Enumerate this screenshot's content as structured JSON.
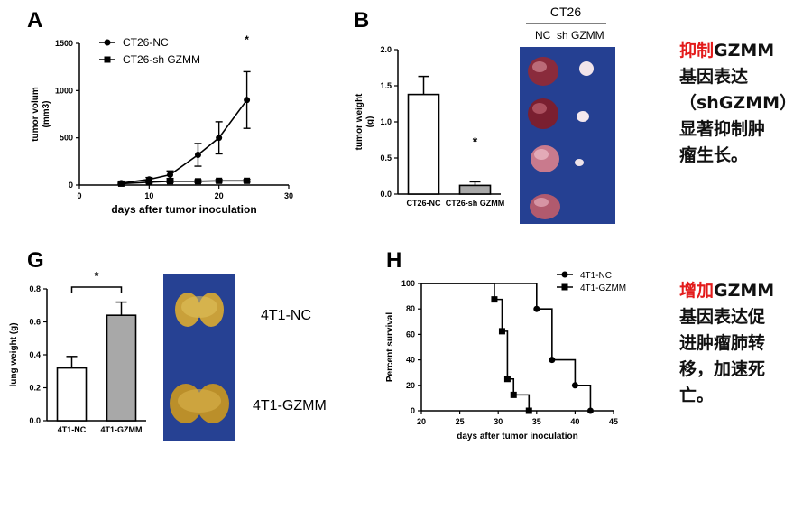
{
  "panels": {
    "A": "A",
    "B": "B",
    "G": "G",
    "H": "H"
  },
  "photo_labels": {
    "ct26_title": "CT26",
    "ct26_nc": "NC",
    "ct26_sh": "sh GZMM",
    "lung_nc": "4T1-NC",
    "lung_gzmm": "4T1-GZMM"
  },
  "notes": [
    {
      "highlight": "抑制",
      "lines": [
        "GZMM",
        "基因表达",
        "（shGZMM）",
        "显著抑制肿",
        "瘤生长。"
      ]
    },
    {
      "highlight": "增加",
      "lines": [
        "GZMM",
        "基因表达促",
        "进肿瘤肺转",
        "移，加速死",
        "亡。"
      ]
    }
  ],
  "colors": {
    "line": "#000000",
    "gray_bar": "#a8a8a8",
    "highlight_red": "#e31b1b",
    "photo_bg": "#2b4aa0"
  },
  "chart_data": [
    {
      "type": "line",
      "panel": "A",
      "xlabel": "days after tumor inoculation",
      "ylabel": "tumor volum (mm3)",
      "xlim": [
        0,
        30
      ],
      "ylim": [
        0,
        1500
      ],
      "xticks": [
        "0",
        "10",
        "20",
        "30"
      ],
      "yticks": [
        "0",
        "500",
        "1000",
        "1500"
      ],
      "legend_position": "top-left",
      "annotation": "*",
      "series": [
        {
          "name": "CT26-NC",
          "marker": "circle",
          "x": [
            6,
            10,
            13,
            17,
            20,
            24
          ],
          "y": [
            20,
            60,
            110,
            320,
            500,
            900
          ],
          "err": [
            10,
            20,
            40,
            120,
            170,
            300
          ]
        },
        {
          "name": "CT26-sh GZMM",
          "marker": "square",
          "x": [
            6,
            10,
            13,
            17,
            20,
            24
          ],
          "y": [
            15,
            30,
            40,
            40,
            45,
            45
          ],
          "err": [
            5,
            10,
            15,
            15,
            15,
            15
          ]
        }
      ]
    },
    {
      "type": "bar",
      "panel": "B",
      "categories": [
        "CT26-NC",
        "CT26-sh GZMM"
      ],
      "values": [
        1.38,
        0.12
      ],
      "errors": [
        0.25,
        0.05
      ],
      "ylabel": "tumor weight (g)",
      "ylim": [
        0,
        2.0
      ],
      "yticks": [
        "0.0",
        "0.5",
        "1.0",
        "1.5",
        "2.0"
      ],
      "fills": [
        "#ffffff",
        "#a8a8a8"
      ],
      "annotation": "*"
    },
    {
      "type": "bar",
      "panel": "G",
      "categories": [
        "4T1-NC",
        "4T1-GZMM"
      ],
      "values": [
        0.32,
        0.64
      ],
      "errors": [
        0.07,
        0.08
      ],
      "ylabel": "lung weight (g)",
      "ylim": [
        0,
        0.8
      ],
      "yticks": [
        "0.0",
        "0.2",
        "0.4",
        "0.6",
        "0.8"
      ],
      "fills": [
        "#ffffff",
        "#a8a8a8"
      ],
      "annotation": "*"
    },
    {
      "type": "line",
      "subtype": "step",
      "panel": "H",
      "xlabel": "days after tumor inoculation",
      "ylabel": "Percent survival",
      "xlim": [
        20,
        45
      ],
      "ylim": [
        0,
        100
      ],
      "xticks": [
        "20",
        "25",
        "30",
        "35",
        "40",
        "45"
      ],
      "yticks": [
        "0",
        "20",
        "40",
        "60",
        "80",
        "100"
      ],
      "legend_position": "top-right",
      "series": [
        {
          "name": "4T1-NC",
          "marker": "circle",
          "x": [
            20,
            35,
            37,
            40,
            42
          ],
          "y": [
            100,
            80,
            40,
            20,
            0
          ]
        },
        {
          "name": "4T1-GZMM",
          "marker": "square",
          "x": [
            20,
            29.5,
            30.5,
            31.2,
            32,
            34
          ],
          "y": [
            100,
            87.5,
            62.5,
            25,
            12.5,
            0
          ]
        }
      ]
    }
  ]
}
